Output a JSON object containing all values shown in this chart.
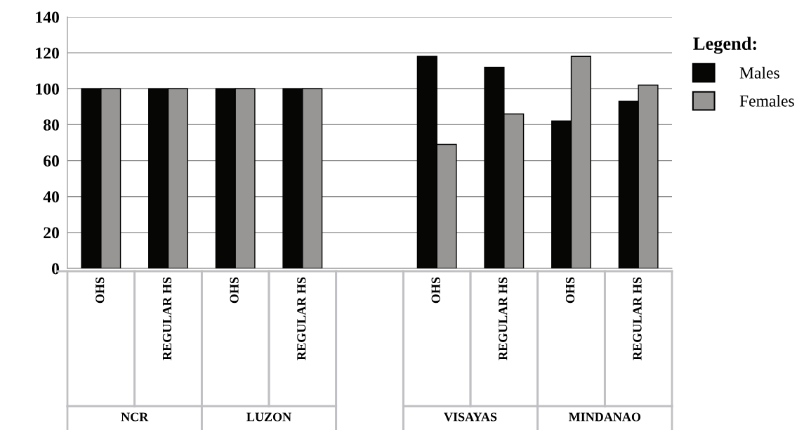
{
  "chart_data": {
    "type": "bar",
    "categories": [
      "OHS",
      "REGULAR HS",
      "OHS",
      "REGULAR HS",
      null,
      "OHS",
      "REGULAR HS",
      "OHS",
      "REGULAR HS"
    ],
    "series": [
      {
        "name": "Males",
        "color": "#060604",
        "values": [
          100,
          100,
          100,
          100,
          null,
          118,
          112,
          82,
          93
        ]
      },
      {
        "name": "Females",
        "color": "#979694",
        "values": [
          100,
          100,
          100,
          100,
          null,
          69,
          86,
          118,
          102
        ]
      }
    ],
    "annotations": [
      "NCR",
      "LUZON",
      "VISAYAS",
      "MINDANAO"
    ],
    "legend_title": "Legend:",
    "legend": "right",
    "ylim": [
      0,
      140
    ],
    "yticks": [
      0,
      20,
      40,
      60,
      80,
      100,
      120,
      140
    ],
    "grid": "y"
  }
}
